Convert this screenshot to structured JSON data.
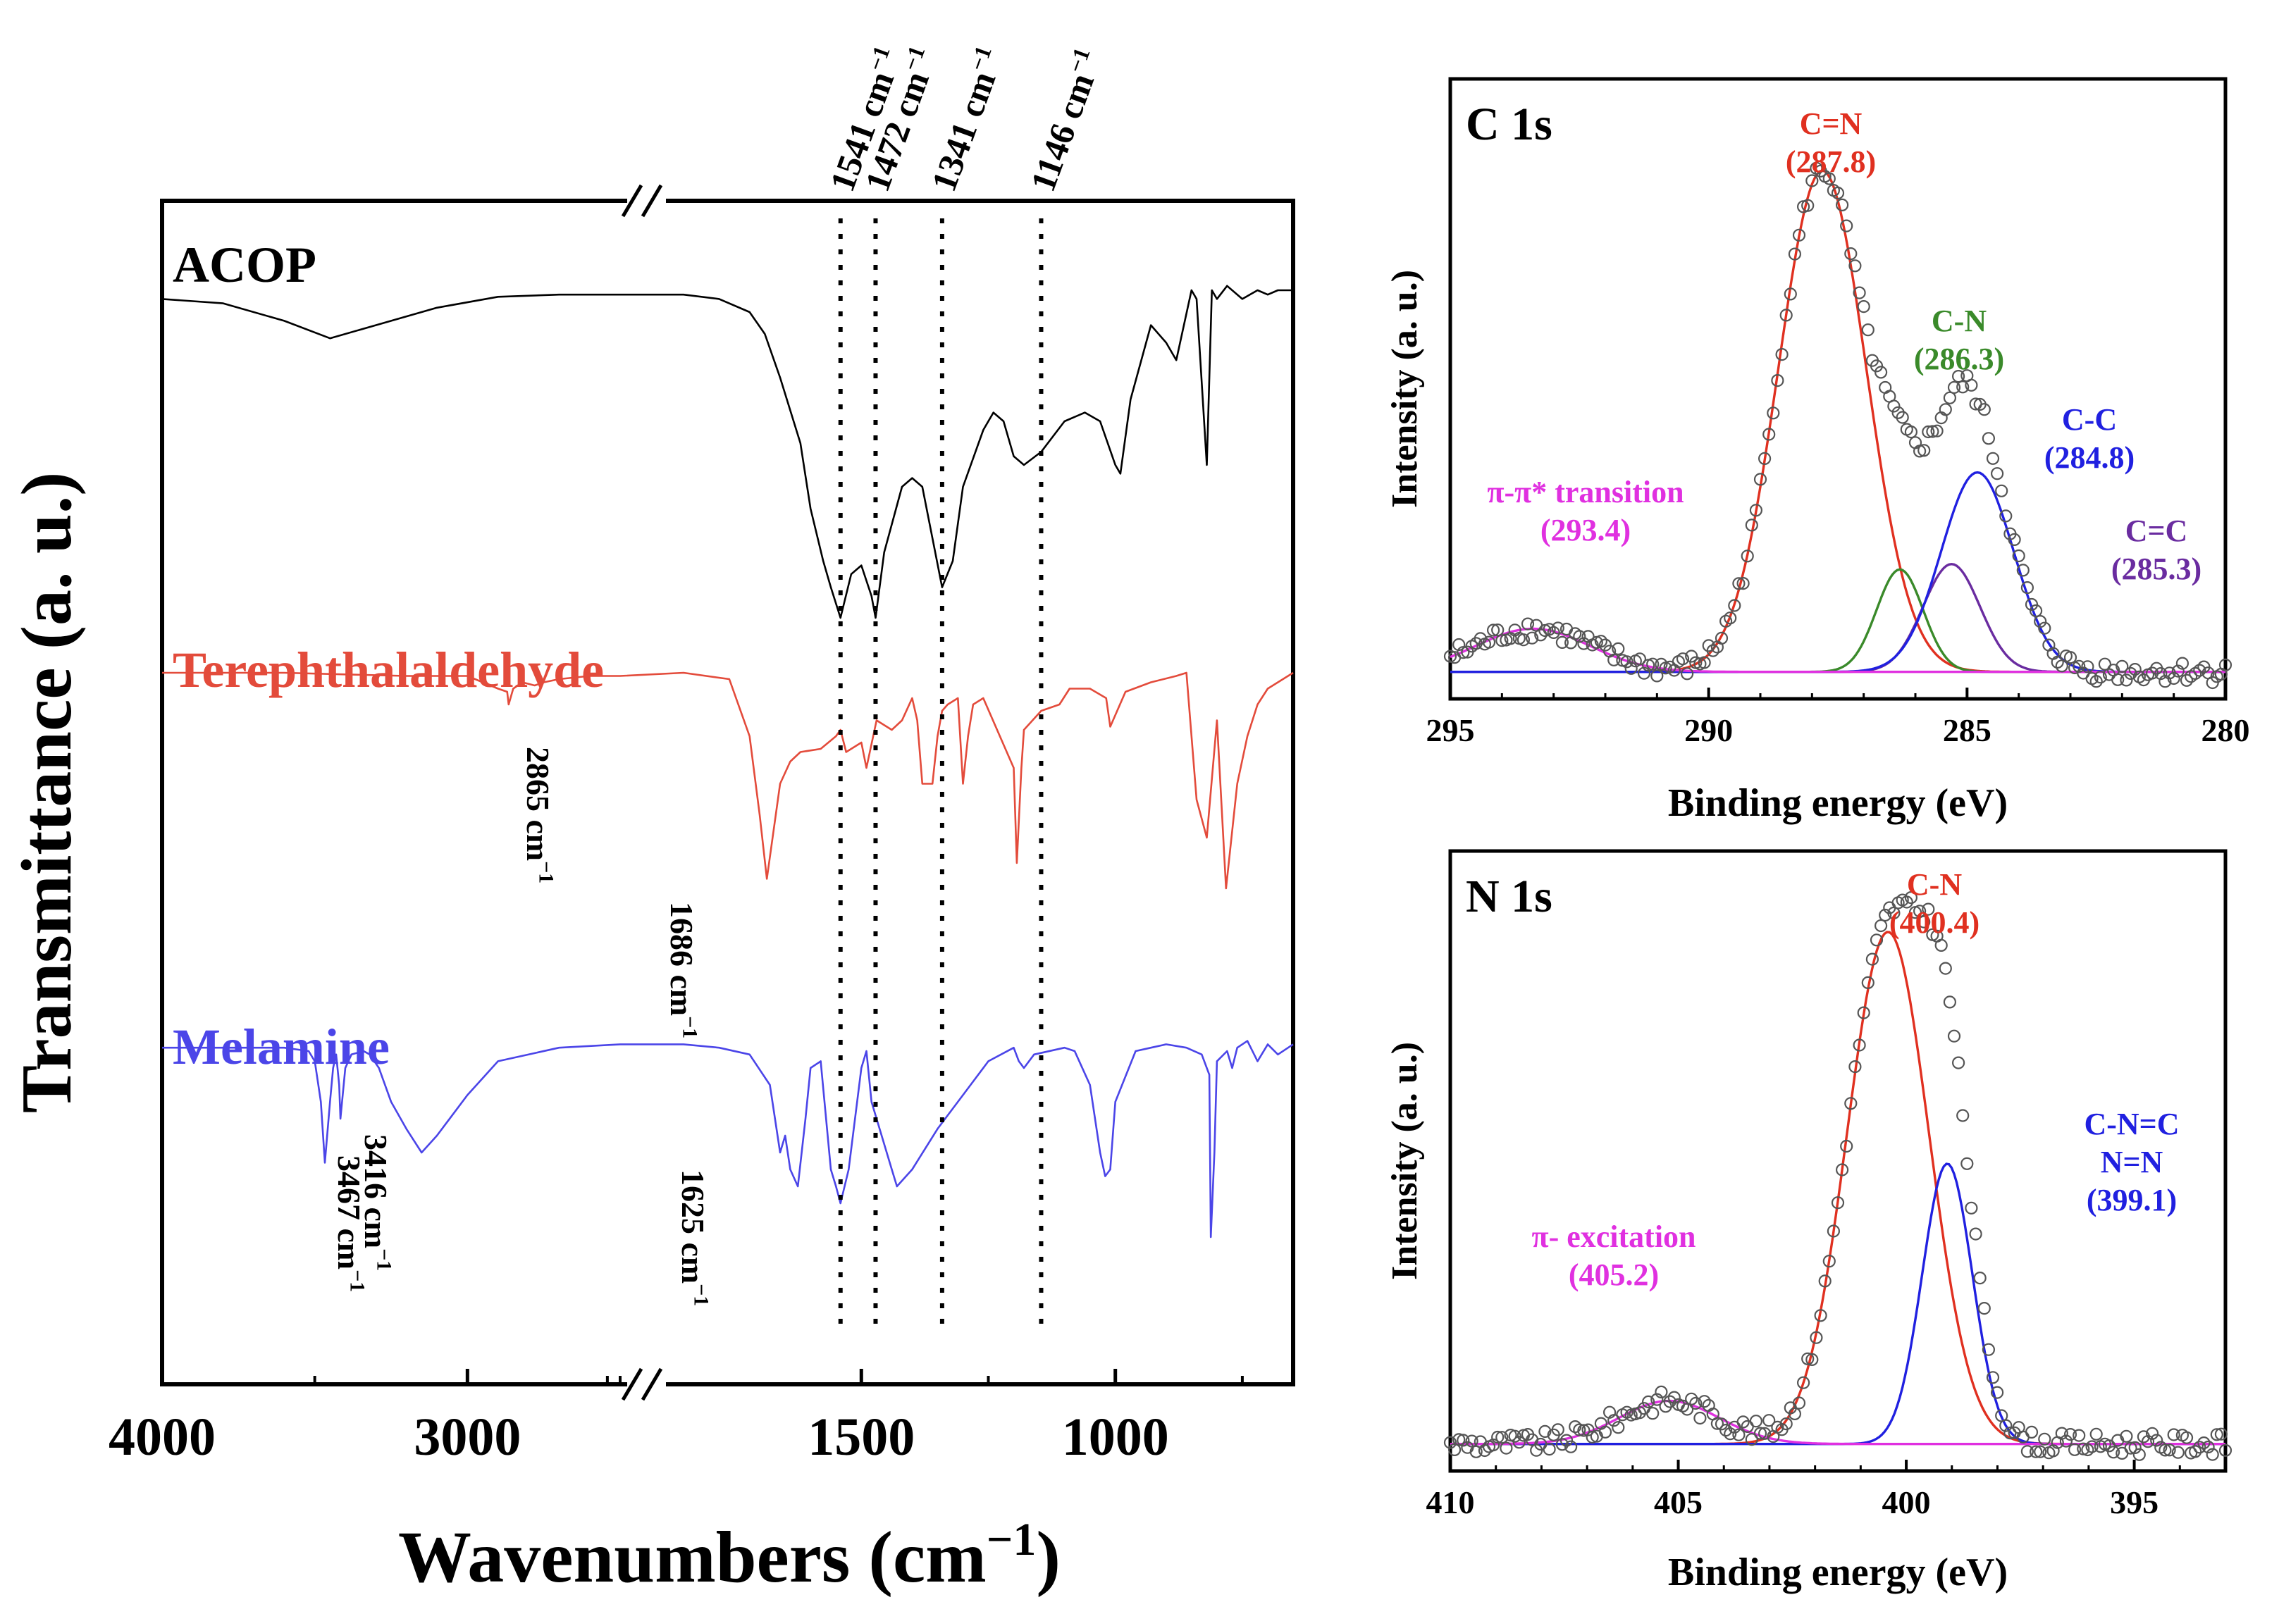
{
  "chart_data": [
    {
      "type": "line",
      "panel": "ftir",
      "xlabel": "Wavenumbers (cm",
      "xlabel_sup": "−1",
      "xlabel_close": ")",
      "ylabel": "Transmittance (a. u.)",
      "xlim": [
        4000,
        650
      ],
      "x_break": [
        2500,
        1850
      ],
      "xticks": [
        4000,
        3000,
        1500,
        1000
      ],
      "xtick_labels": [
        "4000",
        "3000",
        "1500",
        "1000"
      ],
      "series": [
        {
          "name": "ACOP",
          "color": "#000000",
          "x": [
            4000,
            3800,
            3600,
            3450,
            3300,
            3100,
            2900,
            2700,
            2500,
            1850,
            1780,
            1720,
            1690,
            1660,
            1620,
            1600,
            1575,
            1560,
            1541,
            1520,
            1500,
            1480,
            1472,
            1455,
            1420,
            1400,
            1380,
            1341,
            1320,
            1300,
            1260,
            1240,
            1220,
            1200,
            1180,
            1146,
            1100,
            1060,
            1030,
            1000,
            990,
            970,
            930,
            900,
            880,
            850,
            840,
            820,
            810,
            800,
            780,
            750,
            720,
            700,
            680,
            650
          ],
          "y": [
            0.88,
            0.87,
            0.83,
            0.79,
            0.82,
            0.86,
            0.885,
            0.89,
            0.89,
            0.89,
            0.88,
            0.85,
            0.8,
            0.7,
            0.55,
            0.4,
            0.28,
            0.22,
            0.15,
            0.25,
            0.27,
            0.2,
            0.15,
            0.3,
            0.45,
            0.47,
            0.45,
            0.22,
            0.28,
            0.45,
            0.58,
            0.62,
            0.6,
            0.52,
            0.5,
            0.53,
            0.6,
            0.62,
            0.6,
            0.5,
            0.48,
            0.65,
            0.82,
            0.78,
            0.74,
            0.9,
            0.88,
            0.5,
            0.9,
            0.88,
            0.91,
            0.88,
            0.9,
            0.89,
            0.9,
            0.9
          ],
          "label_color": "#000000"
        },
        {
          "name": "Terephthalaldehyde",
          "color": "#e34b3b",
          "x": [
            4000,
            3600,
            3400,
            3200,
            3000,
            2950,
            2900,
            2870,
            2865,
            2850,
            2820,
            2780,
            2750,
            2700,
            2600,
            2500,
            1850,
            1760,
            1720,
            1700,
            1686,
            1660,
            1640,
            1620,
            1580,
            1550,
            1541,
            1530,
            1500,
            1490,
            1470,
            1440,
            1420,
            1400,
            1390,
            1380,
            1360,
            1350,
            1341,
            1330,
            1310,
            1300,
            1290,
            1280,
            1260,
            1200,
            1194,
            1185,
            1180,
            1146,
            1110,
            1090,
            1050,
            1018,
            1010,
            980,
            930,
            880,
            860,
            840,
            820,
            800,
            782,
            760,
            740,
            720,
            700,
            650
          ],
          "y": [
            0.9,
            0.9,
            0.895,
            0.89,
            0.89,
            0.87,
            0.85,
            0.84,
            0.8,
            0.85,
            0.87,
            0.86,
            0.87,
            0.88,
            0.89,
            0.89,
            0.9,
            0.88,
            0.7,
            0.45,
            0.25,
            0.55,
            0.62,
            0.65,
            0.66,
            0.7,
            0.72,
            0.65,
            0.68,
            0.6,
            0.75,
            0.72,
            0.75,
            0.82,
            0.75,
            0.55,
            0.55,
            0.7,
            0.78,
            0.8,
            0.82,
            0.55,
            0.7,
            0.8,
            0.82,
            0.6,
            0.3,
            0.6,
            0.72,
            0.78,
            0.8,
            0.85,
            0.85,
            0.82,
            0.73,
            0.84,
            0.87,
            0.89,
            0.9,
            0.5,
            0.38,
            0.75,
            0.22,
            0.55,
            0.7,
            0.8,
            0.85,
            0.9
          ],
          "label_color": "#e34b3b"
        },
        {
          "name": "Melamine",
          "color": "#4b45e8",
          "x": [
            4000,
            3600,
            3520,
            3500,
            3480,
            3467,
            3450,
            3440,
            3430,
            3420,
            3416,
            3400,
            3380,
            3340,
            3320,
            3290,
            3250,
            3200,
            3150,
            3100,
            3000,
            2900,
            2700,
            2500,
            1850,
            1780,
            1720,
            1680,
            1660,
            1650,
            1640,
            1625,
            1610,
            1600,
            1580,
            1560,
            1550,
            1541,
            1525,
            1500,
            1490,
            1480,
            1460,
            1440,
            1430,
            1400,
            1350,
            1300,
            1250,
            1200,
            1190,
            1180,
            1160,
            1100,
            1080,
            1050,
            1030,
            1020,
            1010,
            1000,
            960,
            930,
            900,
            860,
            830,
            815,
            812,
            805,
            800,
            780,
            770,
            760,
            740,
            720,
            700,
            680,
            650
          ],
          "y": [
            0.86,
            0.86,
            0.85,
            0.82,
            0.7,
            0.52,
            0.7,
            0.8,
            0.84,
            0.75,
            0.65,
            0.8,
            0.84,
            0.85,
            0.84,
            0.8,
            0.7,
            0.62,
            0.55,
            0.6,
            0.72,
            0.82,
            0.86,
            0.87,
            0.87,
            0.86,
            0.84,
            0.75,
            0.55,
            0.6,
            0.5,
            0.45,
            0.65,
            0.8,
            0.82,
            0.5,
            0.45,
            0.4,
            0.5,
            0.8,
            0.85,
            0.7,
            0.6,
            0.5,
            0.45,
            0.5,
            0.62,
            0.72,
            0.82,
            0.86,
            0.82,
            0.8,
            0.84,
            0.86,
            0.85,
            0.75,
            0.55,
            0.48,
            0.5,
            0.7,
            0.85,
            0.86,
            0.87,
            0.86,
            0.84,
            0.78,
            0.3,
            0.55,
            0.82,
            0.85,
            0.8,
            0.86,
            0.88,
            0.82,
            0.87,
            0.84,
            0.87
          ],
          "label_color": "#4b45e8"
        }
      ],
      "reference_lines": [
        {
          "x": 1541,
          "label": "1541 cm",
          "sup": "−1"
        },
        {
          "x": 1472,
          "label": "1472 cm",
          "sup": "−1"
        },
        {
          "x": 1341,
          "label": "1341 cm",
          "sup": "−1"
        },
        {
          "x": 1146,
          "label": "1146 cm",
          "sup": "−1"
        }
      ],
      "annotations": [
        {
          "text": "2865 cm",
          "sup": "−1",
          "x": 2865
        },
        {
          "text": "1686 cm",
          "sup": "−1",
          "x": 1686
        },
        {
          "text": "3416 cm",
          "sup": "−1",
          "x": 3416
        },
        {
          "text": "3467 cm",
          "sup": "−1",
          "x": 3467
        },
        {
          "text": "1625 cm",
          "sup": "−1",
          "x": 1625
        }
      ]
    },
    {
      "type": "line",
      "panel": "xps-c1s",
      "title": "C 1s",
      "xlabel": "Binding energy (eV)",
      "ylabel": "Intensity (a. u.)",
      "xlim": [
        295,
        280
      ],
      "xticks": [
        295,
        290,
        285,
        280
      ],
      "xtick_labels": [
        "295",
        "290",
        "285",
        "280"
      ],
      "ylim": [
        0,
        1.15
      ],
      "baseline": 0.05,
      "components": [
        {
          "name": "C=N",
          "center": 287.8,
          "label": "C=N",
          "value_label": "(287.8)",
          "color": "#e03020",
          "amp": 0.93,
          "width": 0.85
        },
        {
          "name": "C-N",
          "center": 286.3,
          "label": "C-N",
          "value_label": "(286.3)",
          "color": "#3a8a2a",
          "amp": 0.19,
          "width": 0.45
        },
        {
          "name": "C=C",
          "center": 285.3,
          "label": "C=C",
          "value_label": "(285.3)",
          "color": "#6a2ca0",
          "amp": 0.2,
          "width": 0.55
        },
        {
          "name": "C-C",
          "center": 284.8,
          "label": "C-C",
          "value_label": "(284.8)",
          "color": "#2020e0",
          "amp": 0.37,
          "width": 0.7
        },
        {
          "name": "π-π* transition",
          "center": 293.4,
          "label": "π-π* transition",
          "value_label": "(293.4)",
          "color": "#e030e0",
          "amp": 0.08,
          "width": 1.1
        }
      ]
    },
    {
      "type": "line",
      "panel": "xps-n1s",
      "title": "N 1s",
      "xlabel": "Binding energy (eV)",
      "ylabel": "Intensity (a. u.)",
      "xlim": [
        410,
        393
      ],
      "xticks": [
        410,
        405,
        400,
        395
      ],
      "xtick_labels": [
        "410",
        "405",
        "400",
        "395"
      ],
      "ylim": [
        0,
        1.15
      ],
      "baseline": 0.05,
      "components": [
        {
          "name": "C-N",
          "center": 400.4,
          "label": "C-N",
          "value_label": "(400.4)",
          "color": "#e03020",
          "amp": 0.95,
          "width": 0.9
        },
        {
          "name": "C-N=C N=N",
          "center": 399.1,
          "label": "C-N=C",
          "label2": "N=N",
          "value_label": "(399.1)",
          "color": "#2020e0",
          "amp": 0.52,
          "width": 0.55
        },
        {
          "name": "π- excitation",
          "center": 405.2,
          "label": "π- excitation",
          "value_label": "(405.2)",
          "color": "#e030e0",
          "amp": 0.08,
          "width": 1.1
        }
      ]
    }
  ]
}
